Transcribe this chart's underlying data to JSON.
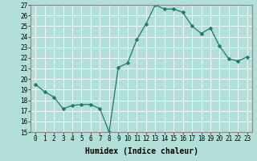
{
  "x": [
    0,
    1,
    2,
    3,
    4,
    5,
    6,
    7,
    8,
    9,
    10,
    11,
    12,
    13,
    14,
    15,
    16,
    17,
    18,
    19,
    20,
    21,
    22,
    23
  ],
  "y": [
    19.5,
    18.8,
    18.3,
    17.2,
    17.5,
    17.6,
    17.6,
    17.2,
    15.0,
    21.1,
    21.5,
    23.7,
    25.2,
    27.0,
    26.6,
    26.6,
    26.3,
    25.0,
    24.3,
    24.8,
    23.1,
    21.9,
    21.7,
    22.1
  ],
  "line_color": "#1a7a6e",
  "marker_color": "#1a7a6e",
  "bg_color": "#b2e0d8",
  "grid_color": "#ffffff",
  "xlabel": "Humidex (Indice chaleur)",
  "ylim": [
    15,
    27
  ],
  "xlim": [
    -0.5,
    23.5
  ],
  "yticks": [
    15,
    16,
    17,
    18,
    19,
    20,
    21,
    22,
    23,
    24,
    25,
    26,
    27
  ],
  "xticks": [
    0,
    1,
    2,
    3,
    4,
    5,
    6,
    7,
    8,
    9,
    10,
    11,
    12,
    13,
    14,
    15,
    16,
    17,
    18,
    19,
    20,
    21,
    22,
    23
  ],
  "xlabel_fontsize": 7,
  "tick_fontsize": 5.5,
  "marker_size": 2.5,
  "linewidth": 0.9
}
